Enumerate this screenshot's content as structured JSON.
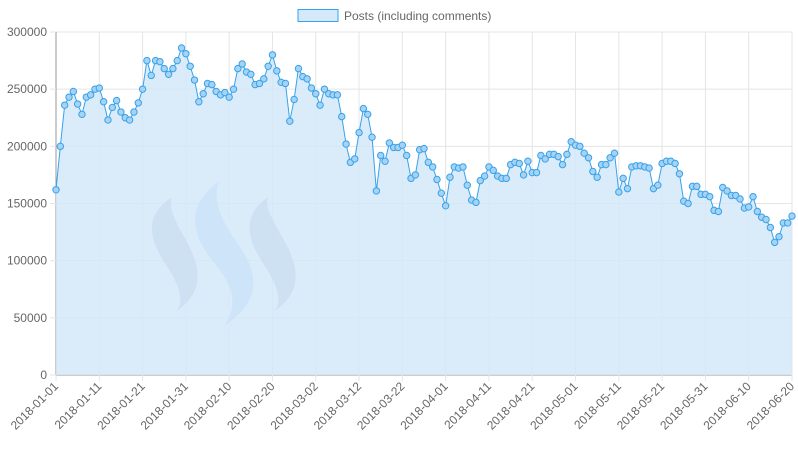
{
  "colors": {
    "series_fill": "#d4e9f9",
    "series_stroke": "#36a2eb",
    "point_fill": "#a6d2f3",
    "grid": "#e5e5e5",
    "axis": "#999999",
    "logo_gray": "#8f9fbf",
    "logo_blue": "#90c3f7"
  },
  "watermark": {
    "icon": "steem-logo-icon"
  },
  "chart_data": {
    "type": "area",
    "legend": {
      "position": "top",
      "entries": [
        "Posts (including comments)"
      ]
    },
    "x_start": "2018-01-01",
    "x_end": "2018-06-20",
    "x_ticks": [
      "2018-01-01",
      "2018-01-11",
      "2018-01-21",
      "2018-01-31",
      "2018-02-10",
      "2018-02-20",
      "2018-03-02",
      "2018-03-12",
      "2018-03-22",
      "2018-04-01",
      "2018-04-11",
      "2018-04-21",
      "2018-05-01",
      "2018-05-11",
      "2018-05-21",
      "2018-05-31",
      "2018-06-10",
      "2018-06-20"
    ],
    "y_ticks": [
      "0",
      "50000",
      "100000",
      "150000",
      "200000",
      "250000",
      "300000"
    ],
    "ylim": [
      0,
      300000
    ],
    "grid": true,
    "series": [
      {
        "name": "Posts (including comments)",
        "values": [
          162000,
          200000,
          236000,
          243000,
          248000,
          237000,
          228000,
          243000,
          245000,
          250000,
          251000,
          239000,
          223000,
          234000,
          240000,
          230000,
          225000,
          223000,
          230000,
          238000,
          250000,
          275000,
          262000,
          275000,
          274000,
          268000,
          263000,
          268000,
          275000,
          286000,
          281000,
          270000,
          258000,
          239000,
          246000,
          255000,
          254000,
          248000,
          245000,
          247000,
          243000,
          250000,
          268000,
          272000,
          265000,
          263000,
          254000,
          255000,
          259000,
          270000,
          280000,
          266000,
          256000,
          255000,
          222000,
          241000,
          268000,
          261000,
          259000,
          251000,
          246000,
          236000,
          250000,
          246000,
          245000,
          245000,
          226000,
          202000,
          186000,
          189000,
          212000,
          233000,
          228000,
          208000,
          161000,
          192000,
          187000,
          203000,
          199000,
          199000,
          201000,
          192000,
          172000,
          175000,
          197000,
          198000,
          186000,
          182000,
          171000,
          159000,
          148000,
          173000,
          182000,
          181000,
          182000,
          166000,
          153000,
          151000,
          170000,
          174000,
          182000,
          179000,
          174000,
          172000,
          172000,
          184000,
          186000,
          185000,
          175000,
          187000,
          177000,
          177000,
          192000,
          189000,
          193000,
          193000,
          191000,
          184000,
          193000,
          204000,
          201000,
          200000,
          194000,
          190000,
          178000,
          173000,
          184000,
          184000,
          190000,
          194000,
          160000,
          172000,
          163000,
          182000,
          183000,
          183000,
          182000,
          181000,
          163000,
          166000,
          185000,
          187000,
          187000,
          185000,
          176000,
          152000,
          150000,
          165000,
          165000,
          158000,
          158000,
          156000,
          144000,
          143000,
          164000,
          161000,
          157000,
          157000,
          154000,
          146000,
          147000,
          156000,
          143000,
          138000,
          136000,
          129000,
          116000,
          121000,
          133000,
          133000,
          139000
        ]
      }
    ]
  }
}
